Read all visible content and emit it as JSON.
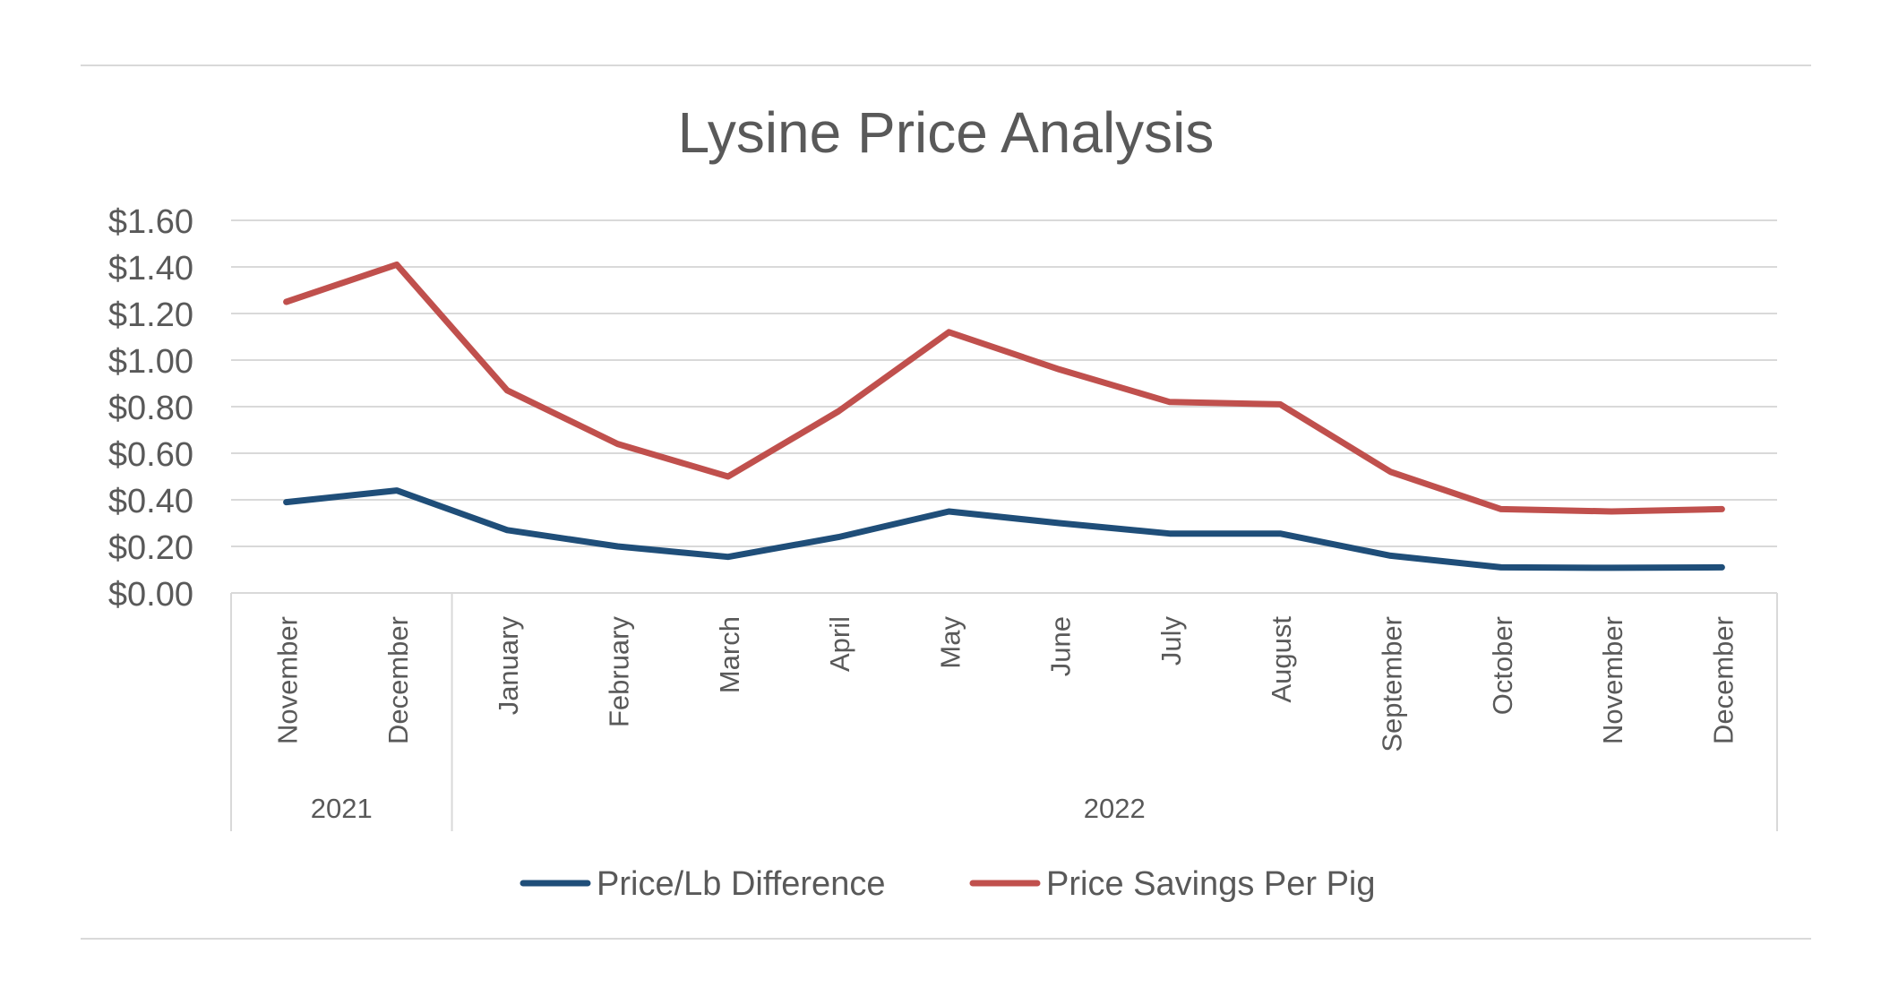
{
  "chart_data": {
    "type": "line",
    "title": "Lysine Price Analysis",
    "categories": [
      "November",
      "December",
      "January",
      "February",
      "March",
      "April",
      "May",
      "June",
      "July",
      "August",
      "September",
      "October",
      "November",
      "December"
    ],
    "category_groups": [
      {
        "label": "2021",
        "start": 0,
        "count": 2
      },
      {
        "label": "2022",
        "start": 2,
        "count": 12
      }
    ],
    "series": [
      {
        "name": "Price/Lb Difference",
        "color": "#1f4e79",
        "values": [
          0.39,
          0.44,
          0.27,
          0.2,
          0.155,
          0.24,
          0.35,
          0.3,
          0.255,
          0.255,
          0.16,
          0.11,
          0.108,
          0.11
        ]
      },
      {
        "name": "Price Savings Per Pig",
        "color": "#c0504d",
        "values": [
          1.25,
          1.41,
          0.87,
          0.64,
          0.5,
          0.78,
          1.12,
          0.96,
          0.82,
          0.81,
          0.52,
          0.36,
          0.35,
          0.36
        ]
      }
    ],
    "yticks": [
      "$0.00",
      "$0.20",
      "$0.40",
      "$0.60",
      "$0.80",
      "$1.00",
      "$1.20",
      "$1.40",
      "$1.60"
    ],
    "ylim": [
      0,
      1.6
    ],
    "grid": true,
    "legend_position": "bottom",
    "xlabel": "",
    "ylabel": ""
  },
  "colors": {
    "grid": "#d9d9d9",
    "text": "#595959",
    "axis": "#d9d9d9"
  }
}
